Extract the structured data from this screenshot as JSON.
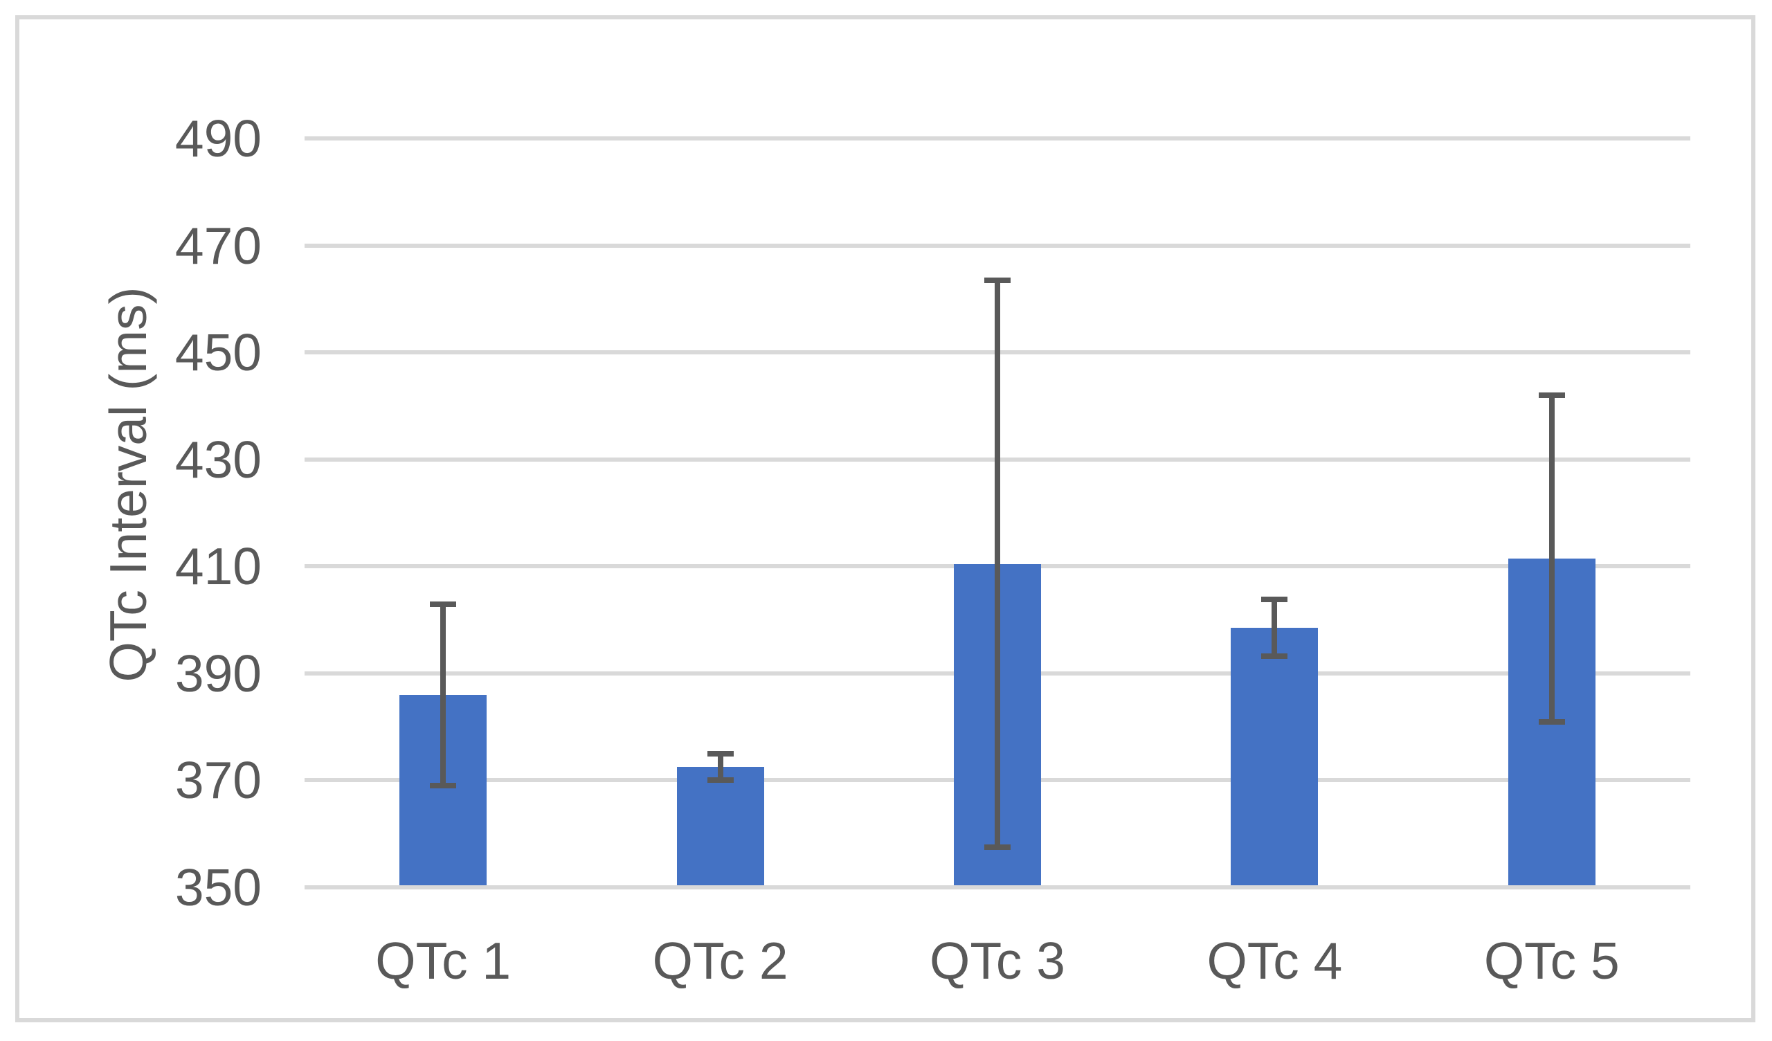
{
  "chart_data": {
    "type": "bar",
    "title": "",
    "xlabel": "",
    "ylabel": "QTc Interval (ms)",
    "categories": [
      "QTc 1",
      "QTc 2",
      "QTc 3",
      "QTc 4",
      "QTc 5"
    ],
    "series": [
      {
        "name": "QTc Interval",
        "values": [
          386,
          372.5,
          410.5,
          398.5,
          411.5
        ],
        "error_plus": [
          17,
          2.5,
          53,
          5.3,
          30.5
        ],
        "error_minus": [
          17,
          2.5,
          53,
          5.3,
          30.5
        ]
      }
    ],
    "ylim": [
      350,
      490
    ],
    "yticks": [
      350,
      370,
      390,
      410,
      430,
      450,
      470,
      490
    ],
    "ytick_step": 20,
    "grid": "horizontal",
    "legend": "none",
    "colors": {
      "bar": "#4472C4",
      "error_bar": "#595959",
      "gridline": "#D9D9D9",
      "frame_border": "#D9D9D9",
      "text": "#595959",
      "background": "#FFFFFF"
    }
  }
}
